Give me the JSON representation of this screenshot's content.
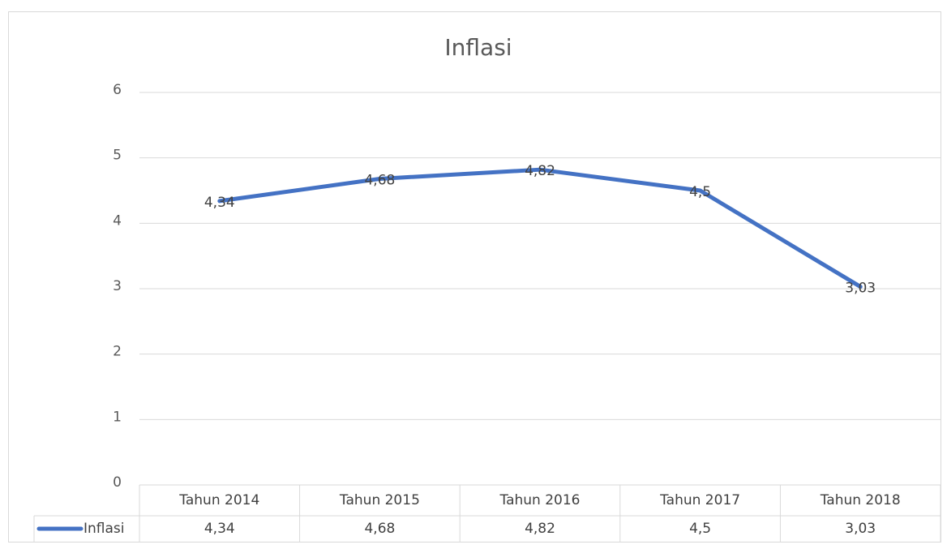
{
  "chart_data": {
    "type": "line",
    "title": "Inflasi",
    "categories": [
      "Tahun 2014",
      "Tahun 2015",
      "Tahun 2016",
      "Tahun 2017",
      "Tahun 2018"
    ],
    "series": [
      {
        "name": "Inflasi",
        "color": "#4472c4",
        "values": [
          4.34,
          4.68,
          4.82,
          4.5,
          3.03
        ],
        "value_labels": [
          "4,34",
          "4,68",
          "4,82",
          "4,5",
          "3,03"
        ]
      }
    ],
    "ylim": [
      0,
      6
    ],
    "yticks": [
      0,
      1,
      2,
      3,
      4,
      5,
      6
    ],
    "grid": true,
    "data_table": true
  }
}
